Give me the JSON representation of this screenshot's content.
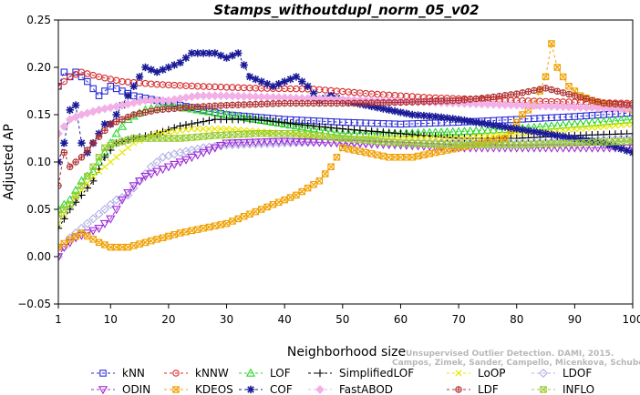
{
  "chart_data": {
    "type": "line",
    "title": "Stamps_withoutdupl_norm_05_v02",
    "xlabel": "Neighborhood size",
    "ylabel": "Adjusted AP",
    "xlim": [
      1,
      100
    ],
    "ylim": [
      -0.05,
      0.25
    ],
    "x_ticks": [
      "1",
      "10",
      "20",
      "30",
      "40",
      "50",
      "60",
      "70",
      "80",
      "90",
      "100"
    ],
    "y_ticks": [
      "−0.05",
      "0.00",
      "0.05",
      "0.10",
      "0.15",
      "0.20",
      "0.25"
    ],
    "grid": false,
    "legend_position": "bottom",
    "watermark": [
      "Unsupervised Outlier Detection. DAMI, 2015.",
      "Campos, Zimek, Sander, Campello, Micenkova, Schubert, Assent, Houle"
    ],
    "series": [
      {
        "name": "kNN",
        "color": "#2b2bd6",
        "marker": "square",
        "points": [
          [
            1,
            0.18
          ],
          [
            2,
            0.195
          ],
          [
            3,
            0.19
          ],
          [
            4,
            0.195
          ],
          [
            6,
            0.185
          ],
          [
            8,
            0.17
          ],
          [
            10,
            0.18
          ],
          [
            12,
            0.175
          ],
          [
            14,
            0.17
          ],
          [
            18,
            0.165
          ],
          [
            22,
            0.16
          ],
          [
            26,
            0.155
          ],
          [
            30,
            0.15
          ],
          [
            40,
            0.145
          ],
          [
            50,
            0.142
          ],
          [
            60,
            0.14
          ],
          [
            70,
            0.142
          ],
          [
            80,
            0.145
          ],
          [
            90,
            0.148
          ],
          [
            100,
            0.152
          ]
        ]
      },
      {
        "name": "kNNW",
        "color": "#d62b2b",
        "marker": "circle",
        "points": [
          [
            1,
            0.18
          ],
          [
            3,
            0.19
          ],
          [
            5,
            0.195
          ],
          [
            8,
            0.19
          ],
          [
            12,
            0.185
          ],
          [
            18,
            0.182
          ],
          [
            25,
            0.18
          ],
          [
            35,
            0.178
          ],
          [
            45,
            0.177
          ],
          [
            55,
            0.172
          ],
          [
            65,
            0.168
          ],
          [
            75,
            0.166
          ],
          [
            85,
            0.164
          ],
          [
            100,
            0.162
          ]
        ]
      },
      {
        "name": "LOF",
        "color": "#2bd62b",
        "marker": "triangle",
        "points": [
          [
            1,
            0.05
          ],
          [
            3,
            0.06
          ],
          [
            5,
            0.08
          ],
          [
            7,
            0.09
          ],
          [
            9,
            0.11
          ],
          [
            11,
            0.13
          ],
          [
            13,
            0.145
          ],
          [
            16,
            0.155
          ],
          [
            20,
            0.16
          ],
          [
            25,
            0.155
          ],
          [
            30,
            0.15
          ],
          [
            40,
            0.14
          ],
          [
            50,
            0.13
          ],
          [
            60,
            0.13
          ],
          [
            70,
            0.132
          ],
          [
            80,
            0.135
          ],
          [
            90,
            0.14
          ],
          [
            100,
            0.145
          ]
        ]
      },
      {
        "name": "SimplifiedLOF",
        "color": "#000000",
        "marker": "plus",
        "points": [
          [
            1,
            0.03
          ],
          [
            3,
            0.05
          ],
          [
            5,
            0.065
          ],
          [
            7,
            0.08
          ],
          [
            9,
            0.105
          ],
          [
            11,
            0.12
          ],
          [
            14,
            0.125
          ],
          [
            18,
            0.13
          ],
          [
            22,
            0.138
          ],
          [
            28,
            0.145
          ],
          [
            35,
            0.145
          ],
          [
            42,
            0.14
          ],
          [
            50,
            0.135
          ],
          [
            60,
            0.13
          ],
          [
            70,
            0.125
          ],
          [
            80,
            0.125
          ],
          [
            90,
            0.128
          ],
          [
            100,
            0.13
          ]
        ]
      },
      {
        "name": "LoOP",
        "color": "#e6e600",
        "marker": "x",
        "points": [
          [
            1,
            0.035
          ],
          [
            3,
            0.055
          ],
          [
            5,
            0.07
          ],
          [
            7,
            0.085
          ],
          [
            10,
            0.1
          ],
          [
            14,
            0.12
          ],
          [
            18,
            0.13
          ],
          [
            24,
            0.135
          ],
          [
            30,
            0.135
          ],
          [
            40,
            0.13
          ],
          [
            50,
            0.125
          ],
          [
            60,
            0.125
          ],
          [
            70,
            0.125
          ],
          [
            80,
            0.13
          ],
          [
            90,
            0.135
          ],
          [
            100,
            0.14
          ]
        ]
      },
      {
        "name": "LDOF",
        "color": "#b0b0e6",
        "marker": "diamond",
        "points": [
          [
            1,
            0.0
          ],
          [
            3,
            0.02
          ],
          [
            5,
            0.03
          ],
          [
            7,
            0.04
          ],
          [
            9,
            0.05
          ],
          [
            11,
            0.06
          ],
          [
            13,
            0.065
          ],
          [
            15,
            0.08
          ],
          [
            17,
            0.095
          ],
          [
            19,
            0.105
          ],
          [
            22,
            0.11
          ],
          [
            26,
            0.115
          ],
          [
            30,
            0.118
          ],
          [
            40,
            0.12
          ],
          [
            50,
            0.122
          ],
          [
            60,
            0.12
          ],
          [
            70,
            0.12
          ],
          [
            80,
            0.12
          ],
          [
            90,
            0.122
          ],
          [
            100,
            0.125
          ]
        ]
      },
      {
        "name": "ODIN",
        "color": "#a02bd6",
        "marker": "triangle-down",
        "points": [
          [
            1,
            0.0
          ],
          [
            2,
            0.01
          ],
          [
            4,
            0.02
          ],
          [
            6,
            0.025
          ],
          [
            8,
            0.03
          ],
          [
            10,
            0.04
          ],
          [
            12,
            0.06
          ],
          [
            14,
            0.075
          ],
          [
            16,
            0.085
          ],
          [
            18,
            0.09
          ],
          [
            20,
            0.095
          ],
          [
            22,
            0.1
          ],
          [
            24,
            0.105
          ],
          [
            26,
            0.11
          ],
          [
            28,
            0.115
          ],
          [
            30,
            0.12
          ],
          [
            40,
            0.122
          ],
          [
            50,
            0.12
          ],
          [
            60,
            0.118
          ],
          [
            70,
            0.115
          ],
          [
            80,
            0.115
          ],
          [
            90,
            0.115
          ],
          [
            100,
            0.115
          ]
        ]
      },
      {
        "name": "KDEOS",
        "color": "#f0a000",
        "marker": "square-x",
        "points": [
          [
            1,
            0.01
          ],
          [
            3,
            0.018
          ],
          [
            5,
            0.025
          ],
          [
            8,
            0.015
          ],
          [
            10,
            0.01
          ],
          [
            13,
            0.01
          ],
          [
            16,
            0.015
          ],
          [
            19,
            0.02
          ],
          [
            22,
            0.025
          ],
          [
            26,
            0.03
          ],
          [
            30,
            0.035
          ],
          [
            34,
            0.045
          ],
          [
            38,
            0.055
          ],
          [
            42,
            0.065
          ],
          [
            46,
            0.08
          ],
          [
            48,
            0.095
          ],
          [
            50,
            0.115
          ],
          [
            54,
            0.11
          ],
          [
            58,
            0.105
          ],
          [
            62,
            0.105
          ],
          [
            66,
            0.11
          ],
          [
            70,
            0.115
          ],
          [
            74,
            0.12
          ],
          [
            78,
            0.125
          ],
          [
            81,
            0.15
          ],
          [
            83,
            0.16
          ],
          [
            85,
            0.19
          ],
          [
            86,
            0.225
          ],
          [
            87,
            0.2
          ],
          [
            89,
            0.18
          ],
          [
            91,
            0.17
          ],
          [
            93,
            0.165
          ],
          [
            96,
            0.16
          ],
          [
            100,
            0.155
          ]
        ]
      },
      {
        "name": "COF",
        "color": "#1a1a99",
        "marker": "asterisk",
        "points": [
          [
            1,
            0.1
          ],
          [
            2,
            0.12
          ],
          [
            3,
            0.155
          ],
          [
            4,
            0.16
          ],
          [
            5,
            0.12
          ],
          [
            6,
            0.11
          ],
          [
            7,
            0.12
          ],
          [
            8,
            0.13
          ],
          [
            9,
            0.14
          ],
          [
            10,
            0.14
          ],
          [
            11,
            0.15
          ],
          [
            12,
            0.16
          ],
          [
            14,
            0.18
          ],
          [
            16,
            0.2
          ],
          [
            18,
            0.195
          ],
          [
            20,
            0.2
          ],
          [
            22,
            0.205
          ],
          [
            24,
            0.215
          ],
          [
            26,
            0.215
          ],
          [
            28,
            0.215
          ],
          [
            30,
            0.21
          ],
          [
            32,
            0.215
          ],
          [
            34,
            0.19
          ],
          [
            36,
            0.185
          ],
          [
            38,
            0.18
          ],
          [
            40,
            0.185
          ],
          [
            42,
            0.19
          ],
          [
            44,
            0.18
          ],
          [
            46,
            0.165
          ],
          [
            48,
            0.17
          ],
          [
            50,
            0.165
          ],
          [
            54,
            0.16
          ],
          [
            58,
            0.155
          ],
          [
            62,
            0.15
          ],
          [
            66,
            0.148
          ],
          [
            70,
            0.145
          ],
          [
            75,
            0.14
          ],
          [
            80,
            0.135
          ],
          [
            85,
            0.13
          ],
          [
            90,
            0.125
          ],
          [
            95,
            0.12
          ],
          [
            100,
            0.11
          ]
        ]
      },
      {
        "name": "FastABOD",
        "color": "#f2b0e6",
        "marker": "diamond-filled",
        "points": [
          [
            1,
            0.13
          ],
          [
            3,
            0.145
          ],
          [
            5,
            0.15
          ],
          [
            8,
            0.155
          ],
          [
            12,
            0.16
          ],
          [
            16,
            0.165
          ],
          [
            20,
            0.165
          ],
          [
            25,
            0.17
          ],
          [
            30,
            0.17
          ],
          [
            40,
            0.168
          ],
          [
            50,
            0.166
          ],
          [
            60,
            0.164
          ],
          [
            70,
            0.162
          ],
          [
            80,
            0.16
          ],
          [
            90,
            0.158
          ],
          [
            100,
            0.156
          ]
        ]
      },
      {
        "name": "LDF",
        "color": "#b03030",
        "marker": "circle-plus",
        "points": [
          [
            1,
            0.075
          ],
          [
            2,
            0.11
          ],
          [
            3,
            0.095
          ],
          [
            4,
            0.1
          ],
          [
            5,
            0.105
          ],
          [
            7,
            0.12
          ],
          [
            10,
            0.14
          ],
          [
            14,
            0.15
          ],
          [
            18,
            0.155
          ],
          [
            24,
            0.158
          ],
          [
            30,
            0.16
          ],
          [
            40,
            0.162
          ],
          [
            50,
            0.162
          ],
          [
            60,
            0.163
          ],
          [
            70,
            0.165
          ],
          [
            75,
            0.168
          ],
          [
            80,
            0.172
          ],
          [
            85,
            0.178
          ],
          [
            90,
            0.17
          ],
          [
            95,
            0.162
          ],
          [
            100,
            0.16
          ]
        ]
      },
      {
        "name": "INFLO",
        "color": "#99cc33",
        "marker": "square-x",
        "points": [
          [
            1,
            0.045
          ],
          [
            3,
            0.055
          ],
          [
            5,
            0.075
          ],
          [
            7,
            0.095
          ],
          [
            9,
            0.115
          ],
          [
            11,
            0.12
          ],
          [
            14,
            0.125
          ],
          [
            18,
            0.125
          ],
          [
            22,
            0.125
          ],
          [
            28,
            0.128
          ],
          [
            35,
            0.13
          ],
          [
            42,
            0.13
          ],
          [
            50,
            0.125
          ],
          [
            60,
            0.12
          ],
          [
            70,
            0.118
          ],
          [
            80,
            0.118
          ],
          [
            90,
            0.12
          ],
          [
            100,
            0.122
          ]
        ]
      }
    ]
  }
}
